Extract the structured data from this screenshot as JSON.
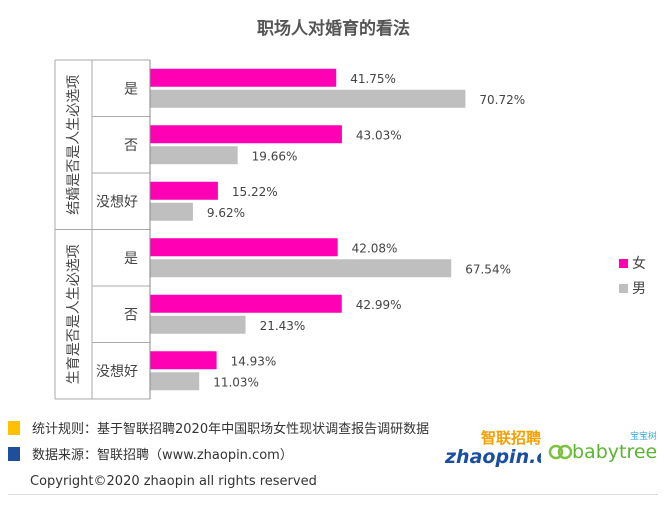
{
  "chart_data": {
    "type": "bar",
    "orientation": "horizontal",
    "title": "职场人对婚育的看法",
    "groups": [
      {
        "label": "结婚是否是人生必选项",
        "categories": [
          "是",
          "否",
          "没想好"
        ]
      },
      {
        "label": "生育是否是人生必选项",
        "categories": [
          "是",
          "否",
          "没想好"
        ]
      }
    ],
    "series": [
      {
        "name": "女",
        "color": "#ff00b4",
        "values": [
          41.75,
          43.03,
          15.22,
          42.08,
          42.99,
          14.93
        ],
        "labels": [
          "41.75%",
          "43.03%",
          "15.22%",
          "42.08%",
          "42.99%",
          "14.93%"
        ]
      },
      {
        "name": "男",
        "color": "#bfbfbf",
        "values": [
          70.72,
          19.66,
          9.62,
          67.54,
          21.43,
          11.03
        ],
        "labels": [
          "70.72%",
          "19.66%",
          "9.62%",
          "67.54%",
          "21.43%",
          "11.03%"
        ]
      }
    ],
    "xlim": [
      0,
      100
    ],
    "legend": "right",
    "grid": false
  },
  "footer": {
    "note1": "统计规则：基于智联招聘2020年中国职场女性现状调查报告调研数据",
    "note1_color": "#ffc000",
    "note2": "数据来源：智联招聘（www.zhaopin.com）",
    "note2_color": "#1f4e9c",
    "copyright": "Copyright©2020 zhaopin all rights reserved",
    "logo_zhaopin_text": "智联招聘",
    "logo_zhaopin_sub": "zhaopin.com",
    "logo_babytree_text": "babytree",
    "logo_babytree_sub": "宝宝树"
  }
}
